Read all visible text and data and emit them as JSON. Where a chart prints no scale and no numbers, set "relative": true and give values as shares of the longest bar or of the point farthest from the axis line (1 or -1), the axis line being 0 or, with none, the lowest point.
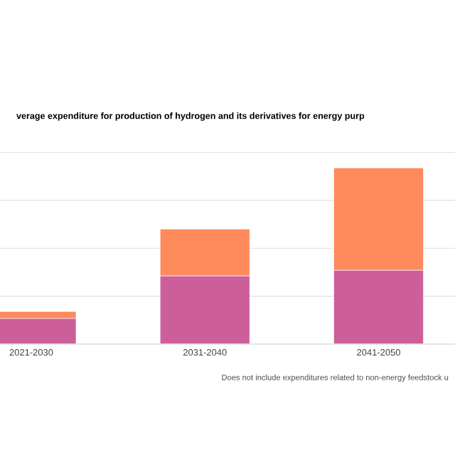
{
  "chart_data": {
    "type": "bar",
    "title": "verage expenditure for production of hydrogen and its derivatives for energy purp",
    "categories": [
      "2021-2030",
      "2031-2040",
      "2041-2050"
    ],
    "stacked": true,
    "relative": true,
    "grid": "y",
    "series": [
      {
        "color": "#cc5f9a",
        "values": [
          0.145,
          0.387,
          0.419
        ]
      },
      {
        "color": "#ff8a5c",
        "values": [
          0.04,
          0.266,
          0.581
        ]
      }
    ],
    "annotations": [
      "Does not include expenditures related to non-energy feedstock u"
    ]
  }
}
